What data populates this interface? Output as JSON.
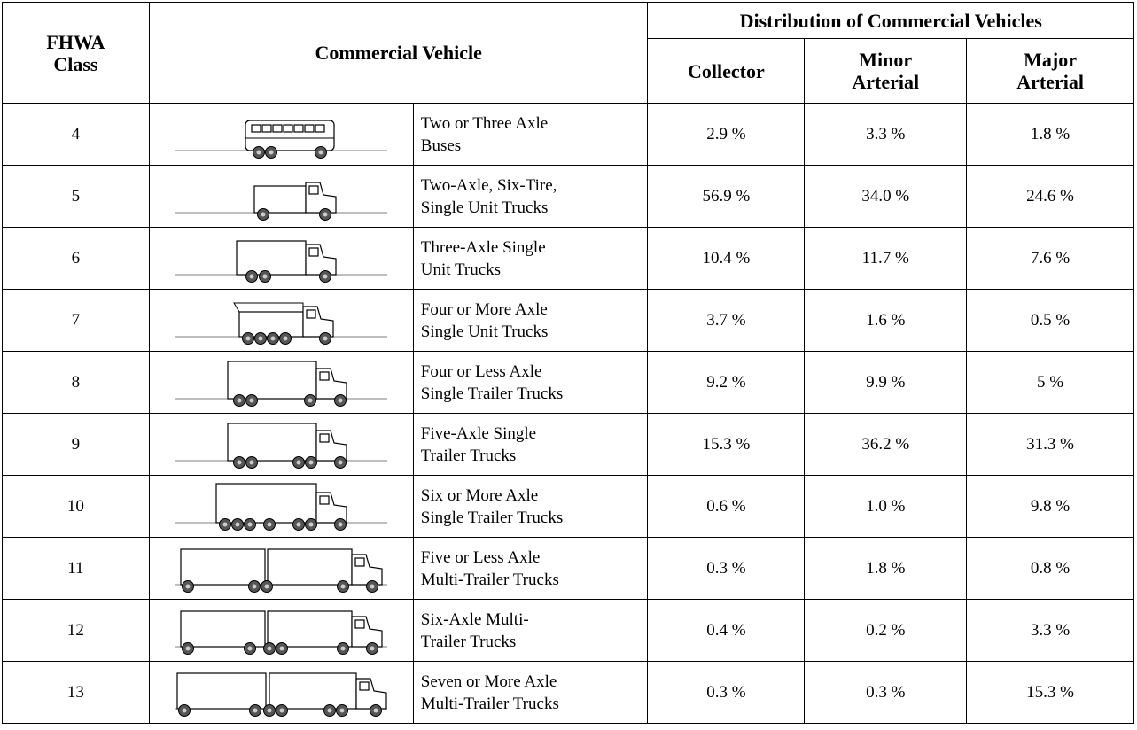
{
  "table": {
    "header": {
      "class": "FHWA\nClass",
      "vehicle": "Commercial Vehicle",
      "distribution": "Distribution of Commercial Vehicles",
      "collector": "Collector",
      "minor": "Minor\nArterial",
      "major": "Major\nArterial"
    },
    "rows": [
      [
        "4",
        "Two or Three Axle\nBuses",
        "2.9 %",
        "3.3 %",
        "1.8 %"
      ],
      [
        "5",
        "Two-Axle, Six-Tire,\nSingle Unit Trucks",
        "56.9 %",
        "34.0 %",
        "24.6 %"
      ],
      [
        "6",
        "Three-Axle Single\nUnit Trucks",
        "10.4 %",
        "11.7 %",
        "7.6 %"
      ],
      [
        "7",
        "Four or More Axle\nSingle Unit Trucks",
        "3.7 %",
        "1.6 %",
        "0.5 %"
      ],
      [
        "8",
        "Four or Less Axle\nSingle Trailer Trucks",
        "9.2 %",
        "9.9 %",
        "5 %"
      ],
      [
        "9",
        "Five-Axle Single\nTrailer Trucks",
        "15.3 %",
        "36.2 %",
        "31.3 %"
      ],
      [
        "10",
        "Six or More Axle\nSingle Trailer Trucks",
        "0.6 %",
        "1.0 %",
        "9.8 %"
      ],
      [
        "11",
        "Five or Less Axle\nMulti-Trailer Trucks",
        "0.3 %",
        "1.8 %",
        "0.8 %"
      ],
      [
        "12",
        "Six-Axle Multi-\nTrailer Trucks",
        "0.4 %",
        "0.2 %",
        "3.3 %"
      ],
      [
        "13",
        "Seven or More Axle\nMulti-Trailer Trucks",
        "0.3 %",
        "0.3 %",
        "15.3 %"
      ]
    ]
  }
}
